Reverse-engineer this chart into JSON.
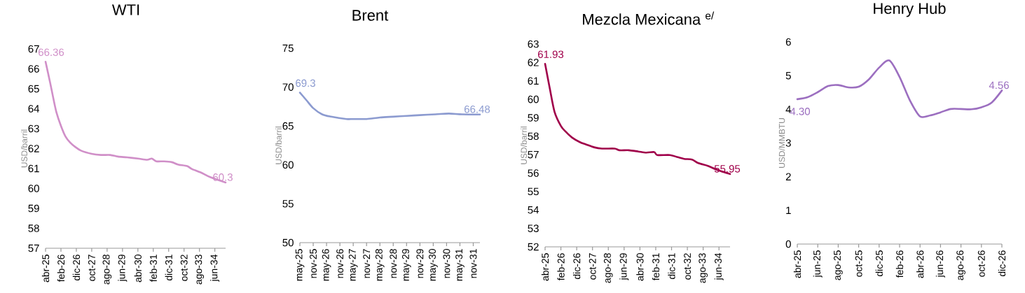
{
  "chart_data": [
    {
      "type": "line",
      "title": "WTI",
      "ylabel": "USD/barril",
      "x": [
        "2025-04",
        "2025-07",
        "2025-09",
        "2025-11",
        "2026-02",
        "2026-05",
        "2026-08",
        "2026-11",
        "2027-03",
        "2027-10",
        "2028-04",
        "2028-10",
        "2029-03",
        "2029-09",
        "2030-04",
        "2030-10",
        "2031-01",
        "2031-04",
        "2031-09",
        "2032-02",
        "2032-06",
        "2032-12",
        "2033-03",
        "2033-09",
        "2034-03",
        "2035-01"
      ],
      "series": [
        {
          "color": "#d08fc8",
          "values": [
            66.36,
            65.3,
            64.54,
            63.84,
            63.14,
            62.6,
            62.3,
            62.1,
            61.9,
            61.74,
            61.68,
            61.68,
            61.6,
            61.56,
            61.5,
            61.44,
            61.5,
            61.36,
            61.36,
            61.32,
            61.2,
            61.12,
            60.98,
            60.8,
            60.57,
            60.3
          ],
          "value_labels": [
            "66.36",
            null,
            null,
            null,
            null,
            null,
            null,
            null,
            null,
            null,
            null,
            null,
            null,
            null,
            null,
            null,
            null,
            null,
            null,
            null,
            null,
            null,
            null,
            null,
            null,
            "60.3"
          ]
        }
      ],
      "xlim": [
        "2025-04",
        "2035-01"
      ],
      "ylim": [
        57,
        67
      ],
      "yticks": [
        57,
        58,
        59,
        60,
        61,
        62,
        63,
        64,
        65,
        66,
        67
      ],
      "xticks": [
        {
          "value": "2025-04",
          "label": "abr-25"
        },
        {
          "value": "2026-02",
          "label": "feb-26"
        },
        {
          "value": "2026-12",
          "label": "dic-26"
        },
        {
          "value": "2027-10",
          "label": "oct-27"
        },
        {
          "value": "2028-08",
          "label": "ago-28"
        },
        {
          "value": "2029-06",
          "label": "jun-29"
        },
        {
          "value": "2030-04",
          "label": "abr-30"
        },
        {
          "value": "2031-02",
          "label": "feb-31"
        },
        {
          "value": "2031-12",
          "label": "dic-31"
        },
        {
          "value": "2032-10",
          "label": "oct-32"
        },
        {
          "value": "2033-08",
          "label": "ago-33"
        },
        {
          "value": "2034-06",
          "label": "jun-34"
        }
      ]
    },
    {
      "type": "line",
      "title": "Brent",
      "ylabel": "USD/barril",
      "x": [
        "2025-05",
        "2025-08",
        "2025-11",
        "2026-03",
        "2026-07",
        "2027-02",
        "2027-05",
        "2027-11",
        "2028-05",
        "2028-11",
        "2029-05",
        "2029-11",
        "2030-06",
        "2030-12",
        "2031-06",
        "2032-02"
      ],
      "series": [
        {
          "color": "#8c9bd0",
          "values": [
            69.3,
            68.3,
            67.3,
            66.5,
            66.2,
            65.9,
            65.9,
            65.9,
            66.1,
            66.2,
            66.3,
            66.4,
            66.5,
            66.6,
            66.5,
            66.48
          ],
          "value_labels": [
            "69.3",
            null,
            null,
            null,
            null,
            null,
            null,
            null,
            null,
            null,
            null,
            null,
            null,
            null,
            null,
            "66.48"
          ]
        }
      ],
      "xlim": [
        "2025-05",
        "2032-02"
      ],
      "ylim": [
        50,
        75
      ],
      "yticks": [
        50,
        55,
        60,
        65,
        70,
        75
      ],
      "xticks": [
        {
          "value": "2025-05",
          "label": "may-25"
        },
        {
          "value": "2025-11",
          "label": "nov-25"
        },
        {
          "value": "2026-05",
          "label": "may-26"
        },
        {
          "value": "2026-11",
          "label": "nov-26"
        },
        {
          "value": "2027-05",
          "label": "may-27"
        },
        {
          "value": "2027-11",
          "label": "nov-27"
        },
        {
          "value": "2028-05",
          "label": "may-28"
        },
        {
          "value": "2028-11",
          "label": "nov-28"
        },
        {
          "value": "2029-05",
          "label": "may-29"
        },
        {
          "value": "2029-11",
          "label": "nov-29"
        },
        {
          "value": "2030-05",
          "label": "may-30"
        },
        {
          "value": "2030-11",
          "label": "nov-30"
        },
        {
          "value": "2031-05",
          "label": "may-31"
        },
        {
          "value": "2031-11",
          "label": "nov-31"
        }
      ]
    },
    {
      "type": "line",
      "title": "Mezcla Mexicana $^{e/}$",
      "ylabel": "USD/barril",
      "x": [
        "2025-04",
        "2025-07",
        "2025-10",
        "2026-02",
        "2026-05",
        "2026-09",
        "2027-02",
        "2027-06",
        "2027-11",
        "2028-04",
        "2028-12",
        "2029-03",
        "2029-09",
        "2030-03",
        "2030-08",
        "2031-01",
        "2031-03",
        "2031-11",
        "2032-04",
        "2032-08",
        "2033-01",
        "2033-05",
        "2033-11",
        "2034-05",
        "2035-01"
      ],
      "series": [
        {
          "color": "#a0004a",
          "values": [
            61.93,
            60.58,
            59.32,
            58.56,
            58.25,
            57.93,
            57.68,
            57.55,
            57.4,
            57.33,
            57.33,
            57.24,
            57.24,
            57.17,
            57.11,
            57.14,
            56.98,
            56.98,
            56.86,
            56.77,
            56.73,
            56.54,
            56.39,
            56.17,
            55.95
          ],
          "value_labels": [
            "61.93",
            null,
            null,
            null,
            null,
            null,
            null,
            null,
            null,
            null,
            null,
            null,
            null,
            null,
            null,
            null,
            null,
            null,
            null,
            null,
            null,
            null,
            null,
            null,
            "55.95"
          ]
        }
      ],
      "xlim": [
        "2025-04",
        "2035-01"
      ],
      "ylim": [
        52,
        63
      ],
      "yticks": [
        52,
        53,
        54,
        55,
        56,
        57,
        58,
        59,
        60,
        61,
        62,
        63
      ],
      "xticks": [
        {
          "value": "2025-04",
          "label": "abr-25"
        },
        {
          "value": "2026-02",
          "label": "feb-26"
        },
        {
          "value": "2026-12",
          "label": "dic-26"
        },
        {
          "value": "2027-10",
          "label": "oct-27"
        },
        {
          "value": "2028-08",
          "label": "ago-28"
        },
        {
          "value": "2029-06",
          "label": "jun-29"
        },
        {
          "value": "2030-04",
          "label": "abr-30"
        },
        {
          "value": "2031-02",
          "label": "feb-31"
        },
        {
          "value": "2031-12",
          "label": "dic-31"
        },
        {
          "value": "2032-10",
          "label": "oct-32"
        },
        {
          "value": "2033-08",
          "label": "ago-33"
        },
        {
          "value": "2034-06",
          "label": "jun-34"
        }
      ]
    },
    {
      "type": "line",
      "title": "Henry Hub",
      "ylabel": "USD/MMBTU",
      "x": [
        "2025-04",
        "2025-05",
        "2025-06",
        "2025-07",
        "2025-08",
        "2025-09",
        "2025-10",
        "2025-11",
        "2025-12",
        "2026-01",
        "2026-02",
        "2026-03",
        "2026-04",
        "2026-05",
        "2026-06",
        "2026-07",
        "2026-08",
        "2026-09",
        "2026-10",
        "2026-11",
        "2026-12"
      ],
      "series": [
        {
          "color": "#9c6fc0",
          "values": [
            4.3,
            4.36,
            4.51,
            4.69,
            4.72,
            4.65,
            4.67,
            4.89,
            5.24,
            5.45,
            4.96,
            4.27,
            3.79,
            3.82,
            3.91,
            4.01,
            4.01,
            4.0,
            4.06,
            4.2,
            4.56
          ],
          "value_labels": [
            "4.30",
            null,
            null,
            null,
            null,
            null,
            null,
            null,
            null,
            null,
            null,
            null,
            null,
            null,
            null,
            null,
            null,
            null,
            null,
            null,
            "4.56"
          ]
        }
      ],
      "xlim": [
        "2025-04",
        "2026-12"
      ],
      "ylim": [
        0,
        6
      ],
      "yticks": [
        0,
        1,
        2,
        3,
        4,
        5,
        6
      ],
      "xticks": [
        {
          "value": "2025-04",
          "label": "abr-25"
        },
        {
          "value": "2025-06",
          "label": "jun-25"
        },
        {
          "value": "2025-08",
          "label": "ago-25"
        },
        {
          "value": "2025-10",
          "label": "oct-25"
        },
        {
          "value": "2025-12",
          "label": "dic-25"
        },
        {
          "value": "2026-02",
          "label": "feb-26"
        },
        {
          "value": "2026-04",
          "label": "abr-26"
        },
        {
          "value": "2026-06",
          "label": "jun-26"
        },
        {
          "value": "2026-08",
          "label": "ago-26"
        },
        {
          "value": "2026-10",
          "label": "oct-26"
        },
        {
          "value": "2026-12",
          "label": "dic-26"
        }
      ]
    }
  ]
}
